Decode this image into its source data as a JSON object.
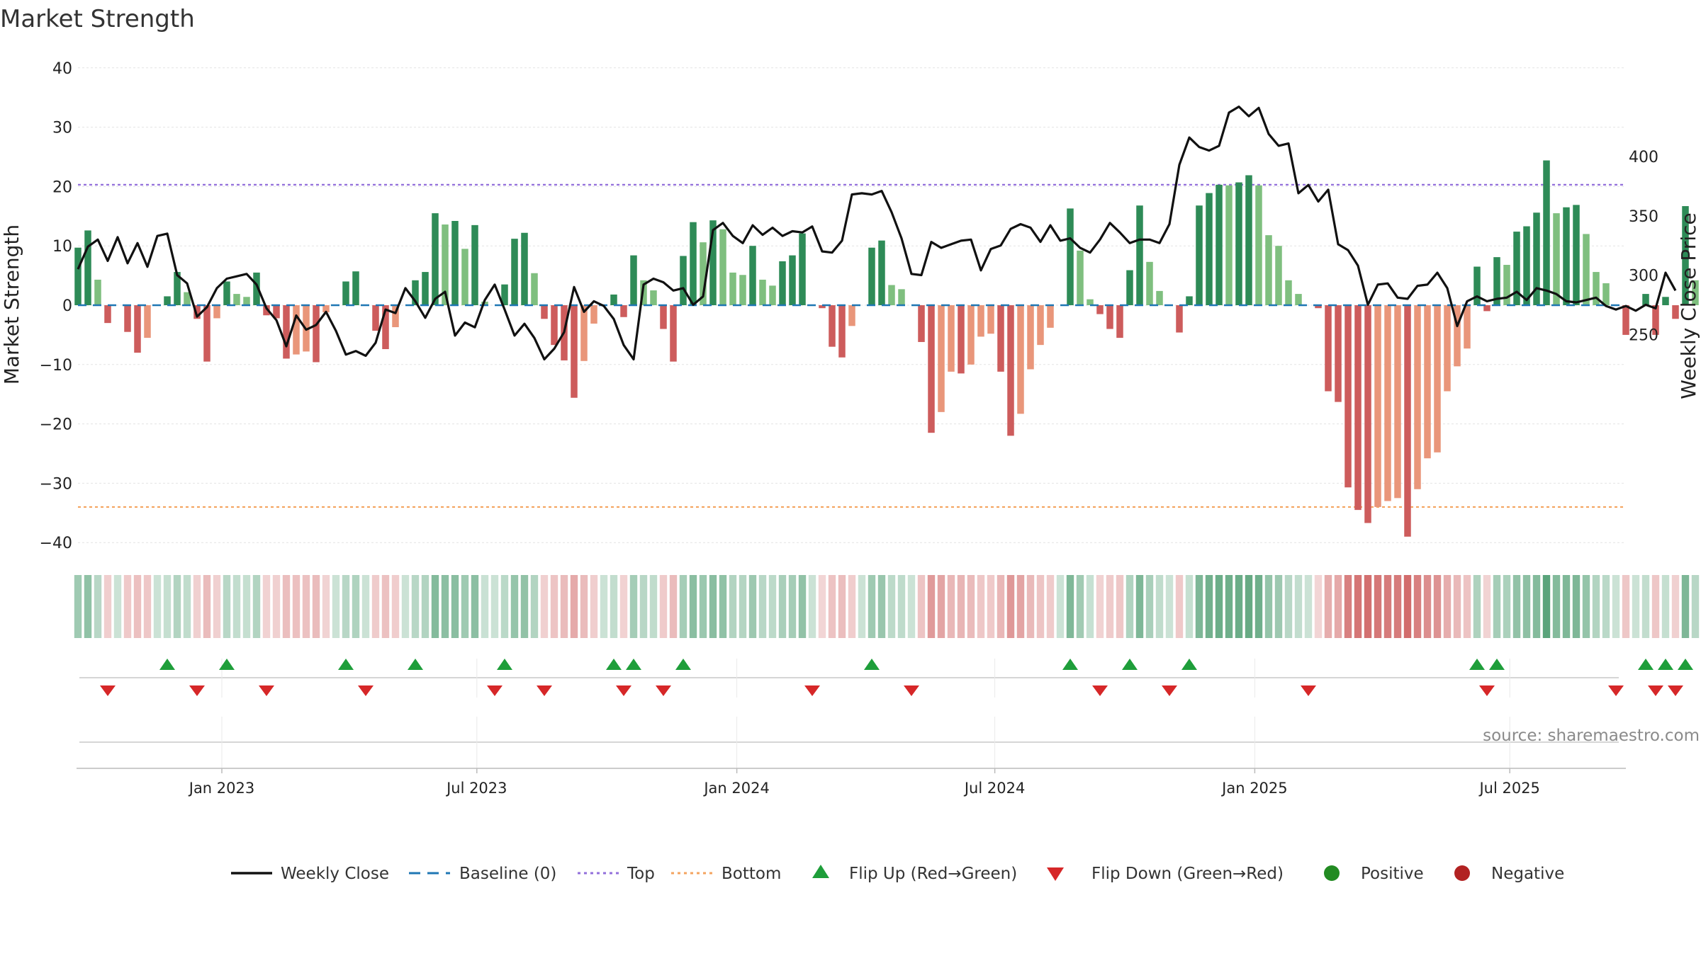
{
  "chart_data": {
    "type": "bar+line",
    "title": "Market Strength",
    "ylabel_left": "Market Strength",
    "ylabel_right": "Weekly Close Price",
    "ylim_left": [
      -45,
      42
    ],
    "ylim_right": [
      213,
      445
    ],
    "left_ticks": [
      "40",
      "30",
      "20",
      "10",
      "0",
      "−10",
      "−20",
      "−30",
      "−40"
    ],
    "left_tick_values": [
      40,
      30,
      20,
      10,
      0,
      -10,
      -20,
      -30,
      -40
    ],
    "right_ticks": [
      "400",
      "350",
      "300",
      "250"
    ],
    "right_tick_values": [
      400,
      350,
      300,
      250
    ],
    "x_ticks": [
      "Jan 2023",
      "Jul 2023",
      "Jan 2024",
      "Jul 2024",
      "Jan 2025",
      "Jul 2025"
    ],
    "x_tick_weeks": [
      14.5,
      40.2,
      66.4,
      92.4,
      118.6,
      144.3
    ],
    "top_threshold": 20.3,
    "bottom_threshold": -34,
    "series": [
      {
        "name": "Market Strength",
        "values": [
          9.7,
          12.6,
          4.3,
          -3,
          0,
          -4.5,
          -8,
          -5.5,
          0,
          1.5,
          5.6,
          2.2,
          -2.3,
          -9.5,
          -2.2,
          4,
          1.9,
          1.4,
          5.5,
          -1.7,
          -2.2,
          -9,
          -8.3,
          -7.8,
          -9.6,
          -1.2,
          0,
          4,
          5.7,
          0,
          -4.3,
          -7.4,
          -3.7,
          0,
          4.2,
          5.6,
          15.5,
          13.6,
          14.2,
          9.5,
          13.5,
          0.6,
          0,
          3.5,
          11.2,
          12.2,
          5.4,
          -2.3,
          -6.7,
          -9.3,
          -15.6,
          -9.4,
          -3.1,
          0,
          1.8,
          -2,
          8.4,
          4.2,
          2.5,
          -4,
          -9.5,
          8.3,
          14,
          10.6,
          14.3,
          12.8,
          5.5,
          5.1,
          10,
          4.3,
          3.3,
          7.4,
          8.4,
          12.1,
          0,
          -0.5,
          -7,
          -8.8,
          -3.5,
          0,
          9.7,
          10.9,
          3.4,
          2.7,
          0,
          -6.2,
          -21.5,
          -18,
          -11.2,
          -11.5,
          -10,
          -5.3,
          -4.8,
          -11.2,
          -22,
          -18.3,
          -10.8,
          -6.7,
          -3.8,
          0,
          16.3,
          9.2,
          1,
          -1.5,
          -4,
          -5.5,
          5.9,
          16.8,
          7.3,
          2.4,
          0,
          -4.6,
          1.5,
          16.8,
          18.9,
          20.3,
          20.2,
          20.7,
          21.9,
          20.2,
          11.8,
          10,
          4.2,
          1.9,
          0,
          -0.5,
          -14.5,
          -16.3,
          -30.7,
          -34.5,
          -36.7,
          -34,
          -33,
          -32.5,
          -39,
          -31,
          -25.8,
          -24.8,
          -14.5,
          -10.3,
          -7.3,
          6.5,
          -1,
          8.1,
          6.8,
          12.4,
          13.3,
          15.6,
          24.4,
          15.5,
          16.5,
          16.9,
          12,
          5.6,
          3.7,
          0,
          -5,
          0,
          1.9,
          -5,
          1.4,
          -2.3,
          16.7,
          4.2
        ]
      },
      {
        "name": "Weekly Close",
        "values": [
          305,
          324,
          330,
          312,
          332,
          310,
          327,
          307,
          333,
          335,
          300,
          293,
          265,
          273,
          289,
          297,
          299,
          301,
          292,
          272,
          262,
          240,
          266,
          254,
          258,
          269,
          253,
          233,
          236,
          232,
          243,
          271,
          268,
          289,
          278,
          264,
          280,
          286,
          249,
          260,
          256,
          279,
          292,
          271,
          249,
          259,
          247,
          229,
          238,
          252,
          290,
          269,
          278,
          274,
          263,
          241,
          229,
          292,
          297,
          294,
          287,
          289,
          275,
          282,
          338,
          344,
          333,
          327,
          342,
          334,
          340,
          333,
          337,
          336,
          341,
          320,
          319,
          329,
          368,
          369,
          368,
          371,
          353,
          331,
          301,
          300,
          328,
          323,
          326,
          329,
          330,
          304,
          322,
          325,
          339,
          343,
          340,
          328,
          342,
          329,
          331,
          323,
          319,
          330,
          344,
          336,
          327,
          330,
          330,
          327,
          343,
          393,
          416,
          408,
          405,
          409,
          437,
          442,
          434,
          441,
          419,
          409,
          411,
          369,
          376,
          362,
          372,
          326,
          321,
          308,
          275,
          292,
          293,
          281,
          280,
          291,
          292,
          302,
          289,
          257,
          278,
          282,
          278,
          280,
          281,
          286,
          279,
          289,
          287,
          284,
          278,
          277,
          279,
          281,
          274,
          271,
          274,
          270,
          275,
          272,
          302,
          287
        ]
      }
    ]
  },
  "legend": {
    "weekly_close": "Weekly Close",
    "baseline": "Baseline (0)",
    "top": "Top",
    "bottom": "Bottom",
    "flip_up": "Flip Up (Red→Green)",
    "flip_down": "Flip Down (Green→Red)",
    "positive": "Positive",
    "negative": "Negative"
  },
  "source": "source: sharemaestro.com",
  "colors": {
    "green_dark": "#2e8b57",
    "green_light": "#7fbf7f",
    "red_dark": "#cd5c5c",
    "red_light": "#e9967a",
    "top_line": "#9370db",
    "bottom_line": "#f4a460",
    "baseline": "#1f77b4",
    "flip_up": "#1e9e3a",
    "flip_down": "#d62728",
    "positive_dot": "#228b22",
    "negative_dot": "#b22222"
  }
}
